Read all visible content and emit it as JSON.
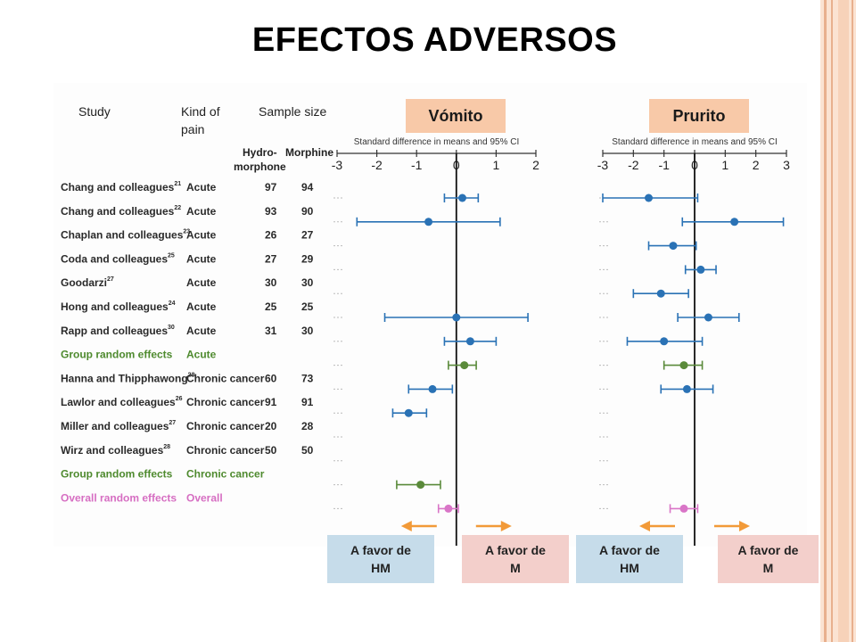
{
  "slide_title": "EFECTOS ADVERSOS",
  "table": {
    "headers": {
      "study": "Study",
      "kind": "Kind of pain",
      "sample": "Sample size",
      "hydro": "Hydro-morphone",
      "morph": "Morphine"
    },
    "rows": [
      {
        "study": "Chang and colleagues",
        "ref": "21",
        "kind": "Acute",
        "hydro": "97",
        "morph": "94",
        "type": "study"
      },
      {
        "study": "Chang and colleagues",
        "ref": "22",
        "kind": "Acute",
        "hydro": "93",
        "morph": "90",
        "type": "study"
      },
      {
        "study": "Chaplan and colleagues",
        "ref": "23",
        "kind": "Acute",
        "hydro": "26",
        "morph": "27",
        "type": "study"
      },
      {
        "study": "Coda and colleagues",
        "ref": "25",
        "kind": "Acute",
        "hydro": "27",
        "morph": "29",
        "type": "study"
      },
      {
        "study": "Goodarzi",
        "ref": "27",
        "kind": "Acute",
        "hydro": "30",
        "morph": "30",
        "type": "study"
      },
      {
        "study": "Hong and colleagues",
        "ref": "24",
        "kind": "Acute",
        "hydro": "25",
        "morph": "25",
        "type": "study"
      },
      {
        "study": "Rapp and colleagues",
        "ref": "30",
        "kind": "Acute",
        "hydro": "31",
        "morph": "30",
        "type": "study"
      },
      {
        "study": "Group random effects",
        "ref": "",
        "kind": "Acute",
        "hydro": "",
        "morph": "",
        "type": "group"
      },
      {
        "study": "Hanna and Thipphawong",
        "ref": "28",
        "kind": "Chronic cancer",
        "hydro": "60",
        "morph": "73",
        "type": "study"
      },
      {
        "study": "Lawlor and colleagues",
        "ref": "26",
        "kind": "Chronic cancer",
        "hydro": "91",
        "morph": "91",
        "type": "study"
      },
      {
        "study": "Miller and colleagues",
        "ref": "27",
        "kind": "Chronic cancer",
        "hydro": "20",
        "morph": "28",
        "type": "study"
      },
      {
        "study": "Wirz and colleagues",
        "ref": "28",
        "kind": "Chronic cancer",
        "hydro": "50",
        "morph": "50",
        "type": "study"
      },
      {
        "study": "Group random effects",
        "ref": "",
        "kind": "Chronic cancer",
        "hydro": "",
        "morph": "",
        "type": "group"
      },
      {
        "study": "Overall random effects",
        "ref": "",
        "kind": "Overall",
        "hydro": "",
        "morph": "",
        "type": "overall"
      }
    ]
  },
  "favor_labels": {
    "hm_line1": "A favor de",
    "hm_line2": "HM",
    "m_line1": "A favor de",
    "m_line2": "M"
  },
  "chart_data": [
    {
      "type": "forest",
      "title": "Vómito",
      "xlabel": "Standard difference in means and 95% CI",
      "xlim": [
        -3,
        2
      ],
      "ticks": [
        "-3",
        "-2",
        "-1",
        "0",
        "1",
        "2"
      ],
      "tick_values": [
        -3,
        -2,
        -1,
        0,
        1,
        2
      ],
      "rows": [
        {
          "estimate": 0.15,
          "low": -0.3,
          "high": 0.55,
          "kind": "study"
        },
        {
          "estimate": -0.7,
          "low": -2.5,
          "high": 1.1,
          "kind": "study"
        },
        null,
        null,
        null,
        {
          "estimate": 0.0,
          "low": -1.8,
          "high": 1.8,
          "kind": "study"
        },
        {
          "estimate": 0.35,
          "low": -0.3,
          "high": 1.0,
          "kind": "study"
        },
        {
          "estimate": 0.2,
          "low": -0.2,
          "high": 0.5,
          "kind": "group"
        },
        {
          "estimate": -0.6,
          "low": -1.2,
          "high": -0.1,
          "kind": "study"
        },
        {
          "estimate": -1.2,
          "low": -1.6,
          "high": -0.75,
          "kind": "study"
        },
        null,
        null,
        {
          "estimate": -0.9,
          "low": -1.5,
          "high": -0.4,
          "kind": "group"
        },
        {
          "estimate": -0.2,
          "low": -0.45,
          "high": 0.05,
          "kind": "overall"
        }
      ]
    },
    {
      "type": "forest",
      "title": "Prurito",
      "xlabel": "Standard difference in means and 95% CI",
      "xlim": [
        -3,
        3
      ],
      "ticks": [
        "-3",
        "-2",
        "-1",
        "0",
        "1",
        "2",
        "3"
      ],
      "tick_values": [
        -3,
        -2,
        -1,
        0,
        1,
        2,
        3
      ],
      "rows": [
        {
          "estimate": -1.5,
          "low": -3.0,
          "high": 0.1,
          "kind": "study"
        },
        {
          "estimate": 1.3,
          "low": -0.4,
          "high": 2.9,
          "kind": "study"
        },
        {
          "estimate": -0.7,
          "low": -1.5,
          "high": 0.05,
          "kind": "study"
        },
        {
          "estimate": 0.2,
          "low": -0.3,
          "high": 0.7,
          "kind": "study"
        },
        {
          "estimate": -1.1,
          "low": -2.0,
          "high": -0.2,
          "kind": "study"
        },
        {
          "estimate": 0.45,
          "low": -0.55,
          "high": 1.45,
          "kind": "study"
        },
        {
          "estimate": -1.0,
          "low": -2.2,
          "high": 0.25,
          "kind": "study"
        },
        {
          "estimate": -0.35,
          "low": -1.0,
          "high": 0.25,
          "kind": "group"
        },
        {
          "estimate": -0.25,
          "low": -1.1,
          "high": 0.6,
          "kind": "study"
        },
        null,
        null,
        null,
        null,
        {
          "estimate": -0.35,
          "low": -0.8,
          "high": 0.1,
          "kind": "overall"
        }
      ]
    }
  ],
  "colors": {
    "study": "#2a72b5",
    "group": "#5a8a3a",
    "overall": "#d975c7",
    "arrow": "#f29a38",
    "title_box": "#f8c9a8",
    "stripe_dark": "#e8b08e",
    "stripe_light": "#fbe3d2"
  }
}
